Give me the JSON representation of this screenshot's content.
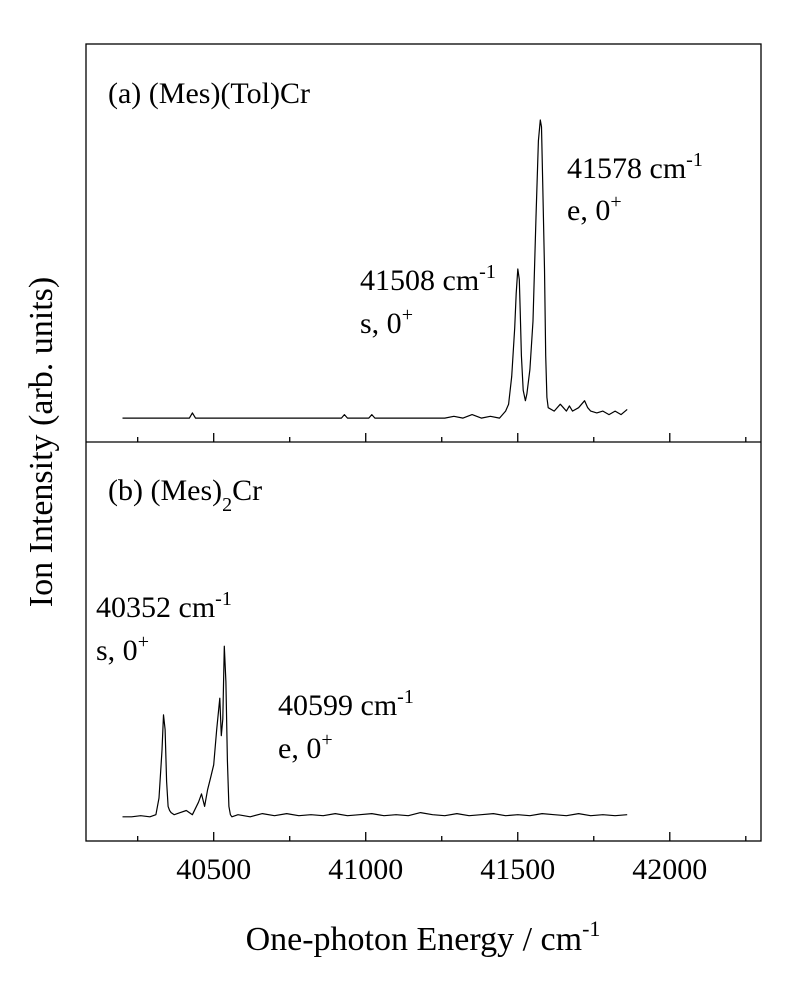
{
  "chart_data": {
    "type": "line",
    "ylabel": "Ion Intensity (arb. units)",
    "xlabel_main": "One-photon Energy / cm",
    "xlabel_sup": "-1",
    "xlim": [
      40080,
      42300
    ],
    "xticks_major": [
      40500,
      41000,
      41500,
      42000
    ],
    "xticks_major_labels": [
      "40500",
      "41000",
      "41500",
      "42000"
    ],
    "xticks_minor": [
      40250,
      40750,
      41250,
      41750,
      42250
    ],
    "panels": [
      {
        "label_html_parts": [
          "(a) (Mes)(Tol)Cr"
        ],
        "label": "(a) (Mes)(Tol)Cr",
        "ylim": [
          0,
          1.0
        ],
        "annotations": [
          {
            "line1_main": "41578 cm",
            "line1_sup": "-1",
            "line2_main": "e, 0",
            "line2_sup": "+",
            "x": 41578
          },
          {
            "line1_main": "41508 cm",
            "line1_sup": "-1",
            "line2_main": "s, 0",
            "line2_sup": "+",
            "x": 41508
          }
        ],
        "series": {
          "name": "(Mes)(Tol)Cr",
          "x": [
            40200,
            40420,
            40430,
            40440,
            40920,
            40930,
            40940,
            41010,
            41020,
            41030,
            41260,
            41290,
            41320,
            41350,
            41380,
            41410,
            41440,
            41460,
            41470,
            41480,
            41490,
            41495,
            41500,
            41505,
            41508,
            41512,
            41518,
            41525,
            41530,
            41540,
            41550,
            41560,
            41568,
            41574,
            41578,
            41582,
            41588,
            41592,
            41596,
            41600,
            41620,
            41640,
            41650,
            41660,
            41670,
            41680,
            41700,
            41720,
            41730,
            41740,
            41760,
            41780,
            41800,
            41820,
            41840,
            41860
          ],
          "y": [
            0.02,
            0.02,
            0.035,
            0.02,
            0.02,
            0.03,
            0.02,
            0.02,
            0.03,
            0.02,
            0.02,
            0.025,
            0.02,
            0.03,
            0.02,
            0.025,
            0.02,
            0.04,
            0.06,
            0.14,
            0.28,
            0.38,
            0.45,
            0.42,
            0.33,
            0.2,
            0.1,
            0.07,
            0.09,
            0.16,
            0.3,
            0.6,
            0.82,
            0.88,
            0.86,
            0.7,
            0.45,
            0.2,
            0.08,
            0.05,
            0.04,
            0.06,
            0.05,
            0.04,
            0.055,
            0.04,
            0.05,
            0.07,
            0.05,
            0.04,
            0.035,
            0.04,
            0.03,
            0.04,
            0.03,
            0.045
          ]
        }
      },
      {
        "label": "(b) (Mes)2Cr",
        "label_main": "(b) (Mes)",
        "label_sub": "2",
        "label_tail": "Cr",
        "ylim": [
          0,
          1.0
        ],
        "annotations": [
          {
            "line1_main": "40352 cm",
            "line1_sup": "-1",
            "line2_main": "s, 0",
            "line2_sup": "+",
            "x": 40352
          },
          {
            "line1_main": "40599 cm",
            "line1_sup": "-1",
            "line2_main": "e, 0",
            "line2_sup": "+",
            "x": 40599
          }
        ],
        "series": {
          "name": "(Mes)2Cr",
          "x": [
            40200,
            40230,
            40260,
            40290,
            40310,
            40320,
            40330,
            40335,
            40340,
            40345,
            40350,
            40355,
            40360,
            40370,
            40390,
            40410,
            40430,
            40450,
            40460,
            40470,
            40480,
            40490,
            40500,
            40510,
            40520,
            40525,
            40530,
            40535,
            40540,
            40545,
            40550,
            40555,
            40560,
            40580,
            40620,
            40660,
            40700,
            40740,
            40780,
            40820,
            40860,
            40900,
            40940,
            40980,
            41020,
            41060,
            41100,
            41140,
            41180,
            41220,
            41260,
            41300,
            41340,
            41380,
            41420,
            41460,
            41500,
            41540,
            41580,
            41620,
            41660,
            41700,
            41740,
            41780,
            41820,
            41860
          ],
          "y": [
            0.03,
            0.03,
            0.035,
            0.03,
            0.04,
            0.12,
            0.35,
            0.52,
            0.45,
            0.2,
            0.08,
            0.06,
            0.05,
            0.04,
            0.05,
            0.06,
            0.04,
            0.1,
            0.14,
            0.08,
            0.16,
            0.22,
            0.28,
            0.45,
            0.6,
            0.42,
            0.5,
            0.85,
            0.68,
            0.3,
            0.08,
            0.04,
            0.03,
            0.04,
            0.03,
            0.045,
            0.035,
            0.045,
            0.035,
            0.04,
            0.035,
            0.045,
            0.035,
            0.04,
            0.045,
            0.035,
            0.04,
            0.035,
            0.05,
            0.04,
            0.035,
            0.045,
            0.035,
            0.04,
            0.045,
            0.035,
            0.04,
            0.035,
            0.045,
            0.04,
            0.035,
            0.045,
            0.035,
            0.04,
            0.035,
            0.04
          ]
        }
      }
    ]
  }
}
